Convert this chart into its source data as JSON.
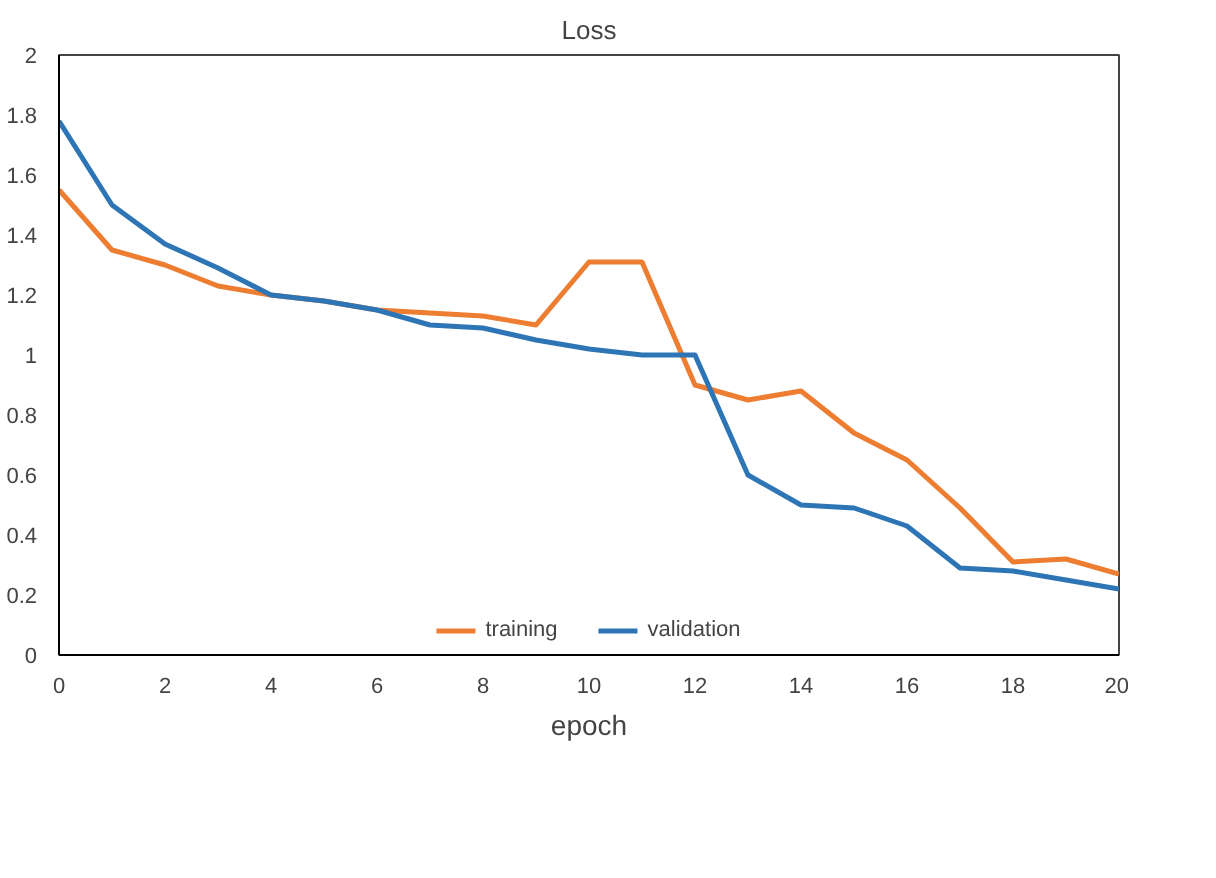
{
  "chart_data": {
    "type": "line",
    "title": "Loss",
    "xlabel": "epoch",
    "x": [
      0,
      1,
      2,
      3,
      4,
      5,
      6,
      7,
      8,
      9,
      10,
      11,
      12,
      13,
      14,
      15,
      16,
      17,
      18,
      19,
      20
    ],
    "series": [
      {
        "name": "training",
        "color": "#ed7d31",
        "values": [
          1.55,
          1.35,
          1.3,
          1.23,
          1.2,
          1.18,
          1.15,
          1.14,
          1.13,
          1.1,
          1.31,
          1.31,
          0.9,
          0.85,
          0.88,
          0.74,
          0.65,
          0.49,
          0.31,
          0.32,
          0.27
        ]
      },
      {
        "name": "validation",
        "color": "#2e75b6",
        "values": [
          1.78,
          1.5,
          1.37,
          1.29,
          1.2,
          1.18,
          1.15,
          1.1,
          1.09,
          1.05,
          1.02,
          1.0,
          1.0,
          0.6,
          0.5,
          0.49,
          0.43,
          0.29,
          0.28,
          0.25,
          0.22
        ]
      }
    ],
    "xlim": [
      0,
      20
    ],
    "ylim": [
      0,
      2
    ],
    "xticks": [
      0,
      2,
      4,
      6,
      8,
      10,
      12,
      14,
      16,
      18,
      20
    ],
    "yticks": [
      0,
      0.2,
      0.4,
      0.6,
      0.8,
      1,
      1.2,
      1.4,
      1.6,
      1.8,
      2
    ],
    "grid": false,
    "legend": "bottom",
    "marker": "none",
    "line_style": "solid"
  }
}
